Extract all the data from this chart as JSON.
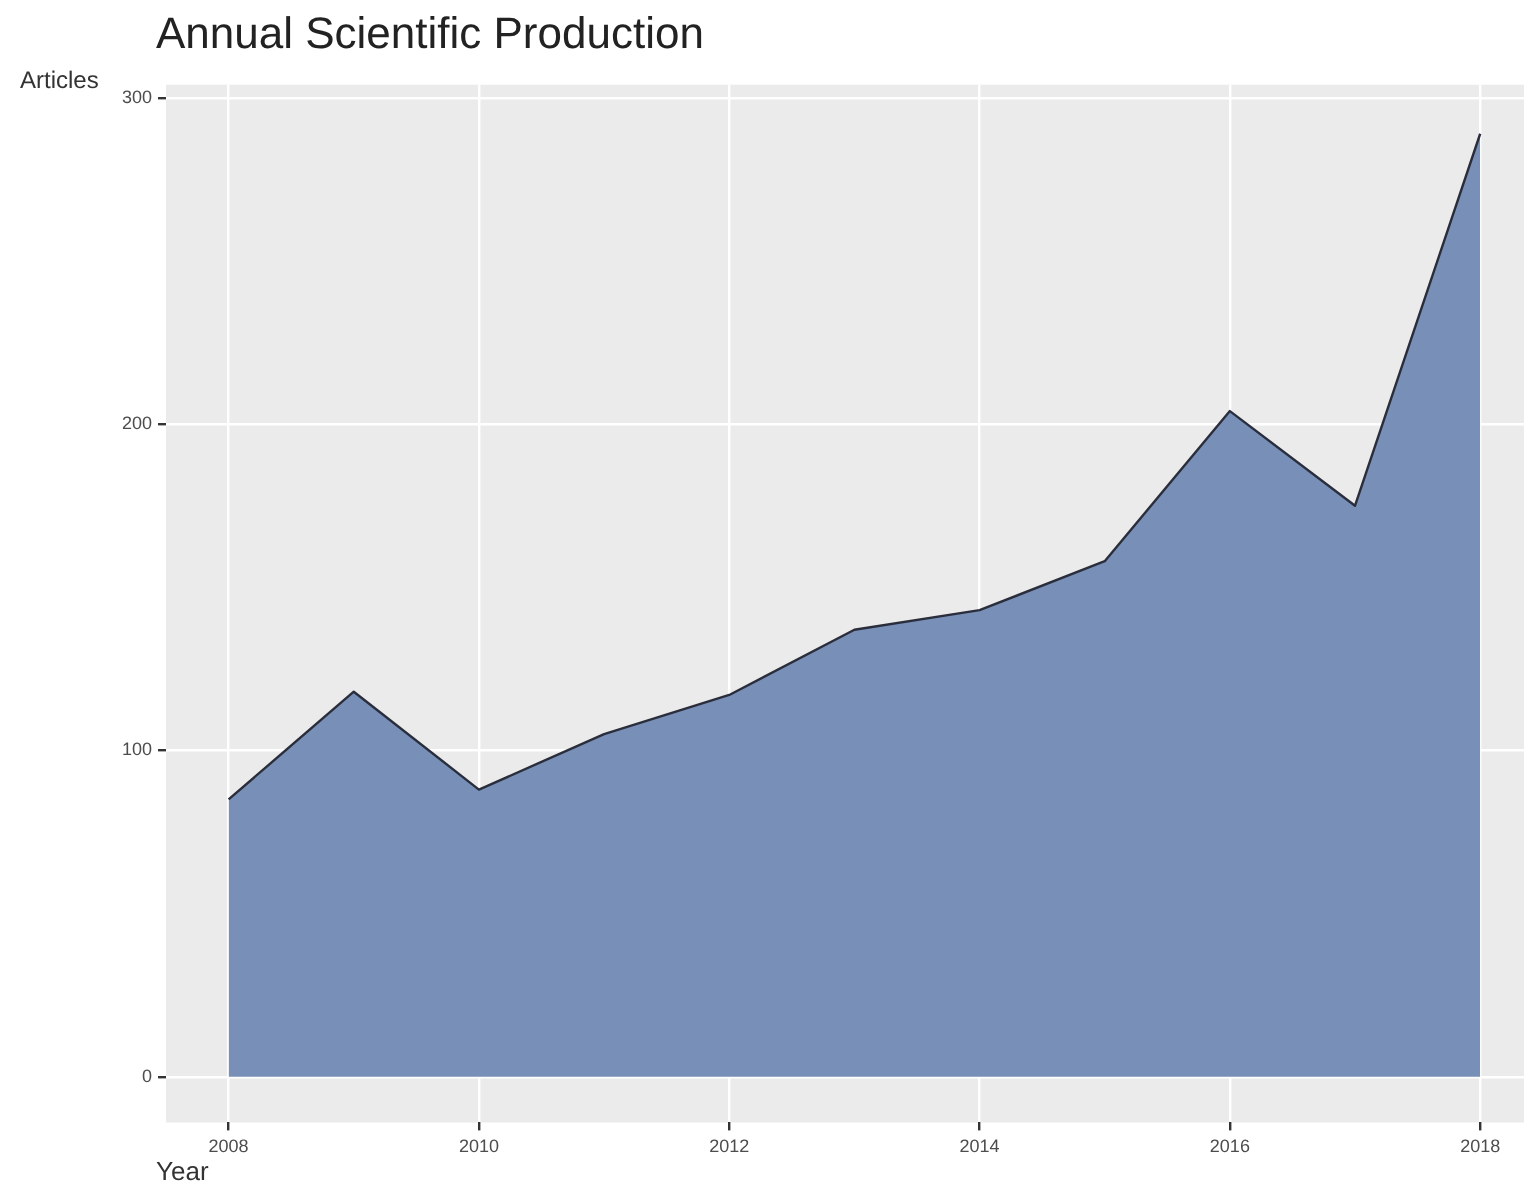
{
  "chart_data": {
    "type": "area",
    "title": "Annual Scientific Production",
    "xlabel": "Year",
    "ylabel": "Articles",
    "x": [
      2008,
      2009,
      2010,
      2011,
      2012,
      2013,
      2014,
      2015,
      2016,
      2017,
      2018
    ],
    "series": [
      {
        "color": "#7890b8",
        "values": [
          85,
          118,
          88,
          105,
          117,
          137,
          143,
          158,
          204,
          175,
          289
        ]
      }
    ],
    "xlim": [
      2007.5,
      2018.35
    ],
    "xticks": [
      2008,
      2010,
      2012,
      2014,
      2016,
      2018
    ],
    "ylim": [
      -14,
      304
    ],
    "yticks": [
      0,
      100,
      200,
      300
    ],
    "grid": true
  }
}
